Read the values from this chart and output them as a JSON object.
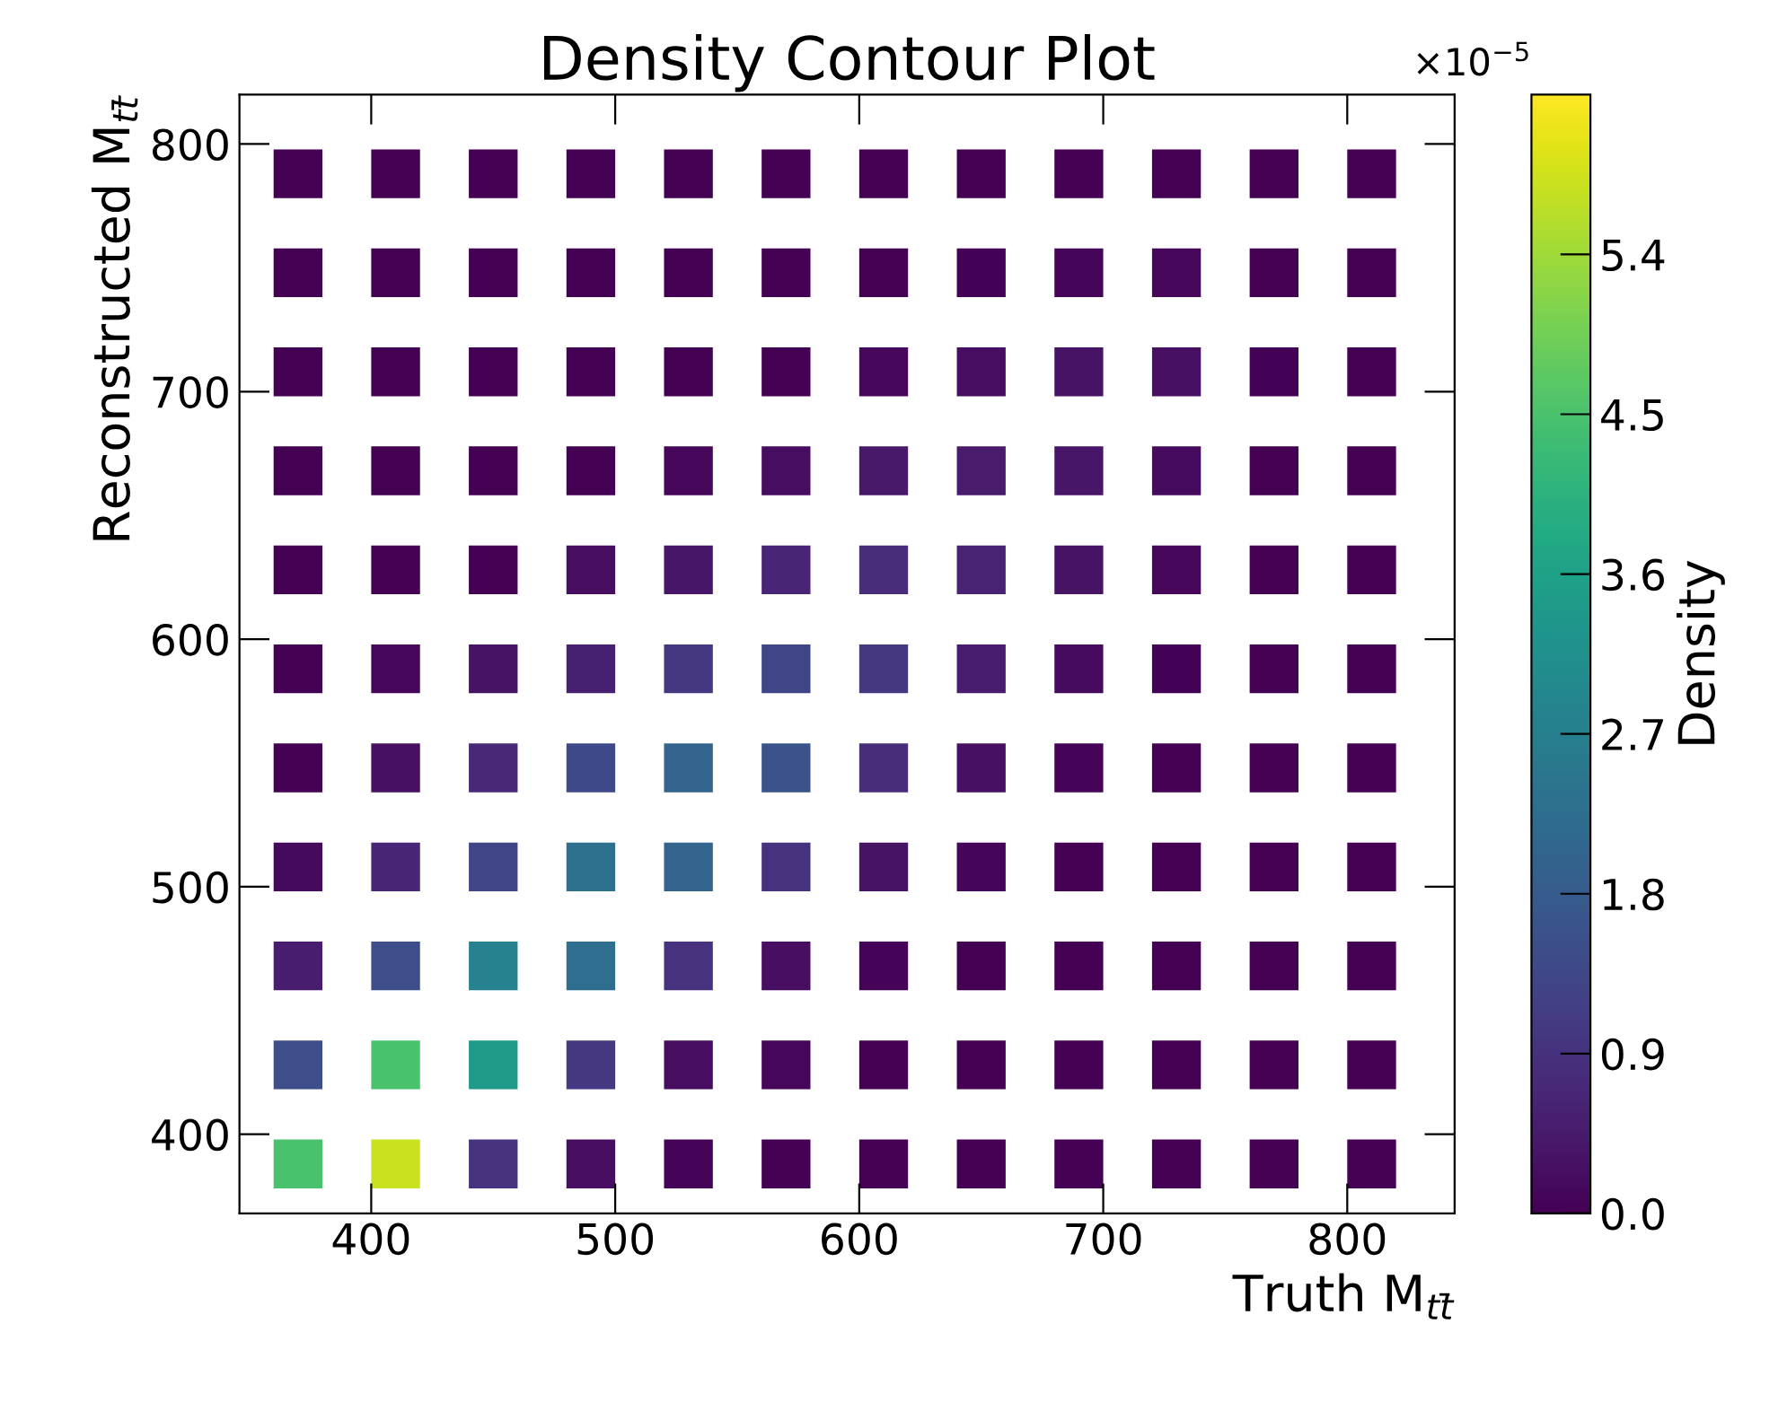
{
  "chart_data": {
    "type": "scatter",
    "title": "Density Contour Plot",
    "xlabel": "Truth M$_{tt̄}$",
    "ylabel": "Reconstructed M$_{tt̄}$",
    "clabel": "Density",
    "annotations": [
      "×10$^{−5}$"
    ],
    "marker": "square",
    "xlim": [
      346,
      844
    ],
    "ylim": [
      368,
      820
    ],
    "xticks": [
      400,
      500,
      600,
      700,
      800
    ],
    "yticks": [
      400,
      500,
      600,
      700,
      800
    ],
    "clim": [
      0,
      6.3
    ],
    "cticks": [
      {
        "value": 0,
        "label": "0.0"
      },
      0.9,
      1.8,
      2.7,
      3.6,
      4.5,
      5.4
    ],
    "x": [
      370,
      410,
      450,
      490,
      530,
      570,
      610,
      650,
      690,
      730,
      770,
      810,
      370,
      410,
      450,
      490,
      530,
      570,
      610,
      650,
      690,
      730,
      770,
      810,
      370,
      410,
      450,
      490,
      530,
      570,
      610,
      650,
      690,
      730,
      770,
      810,
      370,
      410,
      450,
      490,
      530,
      570,
      610,
      650,
      690,
      730,
      770,
      810,
      370,
      410,
      450,
      490,
      530,
      570,
      610,
      650,
      690,
      730,
      770,
      810,
      370,
      410,
      450,
      490,
      530,
      570,
      610,
      650,
      690,
      730,
      770,
      810,
      370,
      410,
      450,
      490,
      530,
      570,
      610,
      650,
      690,
      730,
      770,
      810,
      370,
      410,
      450,
      490,
      530,
      570,
      610,
      650,
      690,
      730,
      770,
      810,
      370,
      410,
      450,
      490,
      530,
      570,
      610,
      650,
      690,
      730,
      770,
      810,
      370,
      410,
      450,
      490,
      530,
      570,
      610,
      650,
      690,
      730,
      770,
      810,
      370,
      410,
      450,
      490,
      530,
      570,
      610,
      650,
      690,
      730,
      770,
      810
    ],
    "values": [
      788,
      788,
      788,
      788,
      788,
      788,
      788,
      788,
      788,
      788,
      788,
      788,
      748,
      748,
      748,
      748,
      748,
      748,
      748,
      748,
      748,
      748,
      748,
      748,
      708,
      708,
      708,
      708,
      708,
      708,
      708,
      708,
      708,
      708,
      708,
      708,
      668,
      668,
      668,
      668,
      668,
      668,
      668,
      668,
      668,
      668,
      668,
      668,
      628,
      628,
      628,
      628,
      628,
      628,
      628,
      628,
      628,
      628,
      628,
      628,
      588,
      588,
      588,
      588,
      588,
      588,
      588,
      588,
      588,
      588,
      588,
      588,
      548,
      548,
      548,
      548,
      548,
      548,
      548,
      548,
      548,
      548,
      548,
      548,
      508,
      508,
      508,
      508,
      508,
      508,
      508,
      508,
      508,
      508,
      508,
      508,
      468,
      468,
      468,
      468,
      468,
      468,
      468,
      468,
      468,
      468,
      468,
      468,
      428,
      428,
      428,
      428,
      428,
      428,
      428,
      428,
      428,
      428,
      428,
      428,
      388,
      388,
      388,
      388,
      388,
      388,
      388,
      388,
      388,
      388,
      388,
      388
    ],
    "cvalues": [
      0,
      0,
      0,
      0,
      0,
      0,
      0,
      0,
      0,
      0,
      0,
      0,
      0,
      0,
      0,
      0,
      0,
      0,
      0,
      0.03,
      0.08,
      0.1,
      0,
      0,
      0,
      0,
      0,
      0,
      0,
      0,
      0.1,
      0.2,
      0.3,
      0.25,
      0.03,
      0,
      0,
      0,
      0,
      0,
      0.1,
      0.22,
      0.4,
      0.45,
      0.35,
      0.18,
      0.02,
      0,
      0,
      0,
      0,
      0.2,
      0.35,
      0.65,
      0.8,
      0.6,
      0.3,
      0.1,
      0,
      0,
      0,
      0.1,
      0.3,
      0.55,
      1.0,
      1.3,
      1.0,
      0.5,
      0.18,
      0.04,
      0,
      0,
      0,
      0.25,
      0.7,
      1.4,
      2.0,
      1.6,
      0.8,
      0.25,
      0.05,
      0,
      0,
      0,
      0.15,
      0.65,
      1.3,
      2.3,
      2.0,
      0.9,
      0.3,
      0.08,
      0,
      0,
      0,
      0,
      0.5,
      1.5,
      2.8,
      2.25,
      0.9,
      0.24,
      0.05,
      0,
      0,
      0,
      0,
      0,
      1.5,
      4.5,
      3.4,
      1.0,
      0.2,
      0.1,
      0,
      0,
      0,
      0,
      0,
      0,
      4.5,
      5.8,
      0.9,
      0.2,
      0.05,
      0,
      0,
      0,
      0,
      0,
      0,
      0
    ]
  }
}
